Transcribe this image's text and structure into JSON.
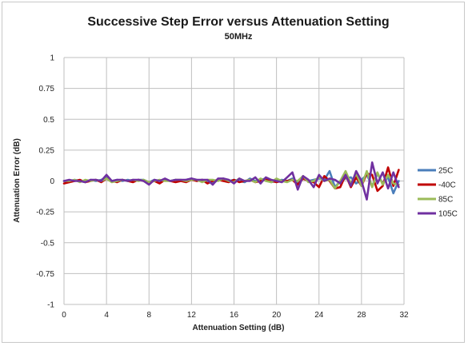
{
  "chart_data": {
    "type": "line",
    "title": "Successive Step Error versus Attenuation Setting",
    "subtitle": "50MHz",
    "xlabel": "Attenuation Setting (dB)",
    "ylabel": "Attenuation Error (dB)",
    "xlim": [
      0,
      32
    ],
    "ylim": [
      -1,
      1
    ],
    "x_ticks": [
      "0",
      "4",
      "8",
      "12",
      "16",
      "20",
      "24",
      "28",
      "32"
    ],
    "y_ticks": [
      "1",
      "0.75",
      "0.5",
      "0.25",
      "0",
      "-0.25",
      "-0.5",
      "-0.75",
      "-1"
    ],
    "grid": true,
    "legend_position": "right",
    "x": [
      0,
      0.5,
      1,
      1.5,
      2,
      2.5,
      3,
      3.5,
      4,
      4.5,
      5,
      5.5,
      6,
      6.5,
      7,
      7.5,
      8,
      8.5,
      9,
      9.5,
      10,
      10.5,
      11,
      11.5,
      12,
      12.5,
      13,
      13.5,
      14,
      14.5,
      15,
      15.5,
      16,
      16.5,
      17,
      17.5,
      18,
      18.5,
      19,
      19.5,
      20,
      20.5,
      21,
      21.5,
      22,
      22.5,
      23,
      23.5,
      24,
      24.5,
      25,
      25.5,
      26,
      26.5,
      27,
      27.5,
      28,
      28.5,
      29,
      29.5,
      30,
      30.5,
      31,
      31.5
    ],
    "series": [
      {
        "name": "25C",
        "color": "#4a7ebb",
        "values": [
          0,
          -0.01,
          0.01,
          0,
          -0.01,
          0.01,
          0,
          0.01,
          0.03,
          0,
          0.01,
          0,
          0.01,
          0,
          0.01,
          0.01,
          -0.01,
          0.01,
          0,
          0.01,
          0,
          0.01,
          0,
          0.01,
          0.02,
          0,
          0.01,
          0,
          -0.02,
          0.01,
          0.02,
          0,
          0.01,
          0,
          -0.01,
          0.02,
          0,
          0.01,
          0.02,
          -0.01,
          0,
          0.01,
          0,
          0.02,
          -0.02,
          0.03,
          0,
          0.01,
          0.02,
          0.01,
          0.08,
          -0.05,
          0,
          0.02,
          0.03,
          -0.02,
          0.01,
          0.05,
          -0.04,
          0.06,
          -0.02,
          0.03,
          -0.1,
          0
        ]
      },
      {
        "name": "-40C",
        "color": "#c00000",
        "values": [
          -0.02,
          -0.01,
          0,
          0.01,
          -0.01,
          0,
          0.01,
          -0.01,
          0.02,
          0,
          -0.01,
          0.01,
          0,
          -0.01,
          0.01,
          0,
          -0.01,
          0,
          -0.02,
          0.01,
          0,
          -0.01,
          0,
          -0.01,
          0.01,
          0,
          0.01,
          -0.02,
          0,
          0.01,
          0,
          -0.01,
          0.01,
          -0.01,
          0,
          0.01,
          -0.01,
          0,
          0.01,
          0,
          -0.01,
          0,
          0,
          0.01,
          -0.03,
          0.02,
          0,
          -0.01,
          -0.05,
          0.04,
          0,
          -0.06,
          -0.05,
          0.05,
          -0.05,
          0.03,
          -0.04,
          0.06,
          0.05,
          -0.08,
          -0.04,
          0.11,
          -0.04,
          0.09
        ]
      },
      {
        "name": "85C",
        "color": "#9bbb59",
        "values": [
          0,
          0,
          0.01,
          -0.01,
          0.01,
          0,
          0.01,
          0,
          0.02,
          -0.01,
          0,
          0.01,
          0,
          0.01,
          0,
          0.01,
          -0.01,
          0,
          0.01,
          0,
          0,
          0.01,
          0.01,
          0,
          0.01,
          0.01,
          -0.01,
          0.01,
          0.01,
          0,
          0.02,
          0,
          -0.01,
          0.02,
          0,
          0.01,
          -0.01,
          0.02,
          0,
          -0.01,
          0.02,
          0,
          -0.01,
          0.01,
          0,
          0.04,
          -0.01,
          0,
          0.03,
          0,
          0.01,
          -0.06,
          0,
          0.08,
          -0.02,
          0.06,
          -0.04,
          0.08,
          -0.05,
          0.07,
          -0.03,
          0.05,
          -0.02,
          -0.03
        ]
      },
      {
        "name": "105C",
        "color": "#7030a0",
        "values": [
          0,
          0.01,
          0,
          0,
          -0.01,
          0.01,
          0.01,
          0,
          0.05,
          0,
          0.01,
          0.01,
          0,
          0.01,
          0.01,
          0,
          -0.03,
          0.01,
          0,
          0.02,
          0,
          0.01,
          0.01,
          0.01,
          0.02,
          0.01,
          0.01,
          0.01,
          -0.03,
          0.02,
          0.02,
          0.01,
          -0.02,
          0.02,
          0,
          0,
          0.03,
          -0.02,
          0.03,
          0.01,
          0,
          -0.01,
          0.03,
          0.07,
          -0.07,
          0.04,
          0.01,
          -0.05,
          0.05,
          0,
          0.02,
          0.01,
          -0.02,
          0.05,
          -0.04,
          0.08,
          0,
          -0.15,
          0.15,
          -0.02,
          0.07,
          -0.06,
          0.07,
          -0.05
        ]
      }
    ]
  }
}
